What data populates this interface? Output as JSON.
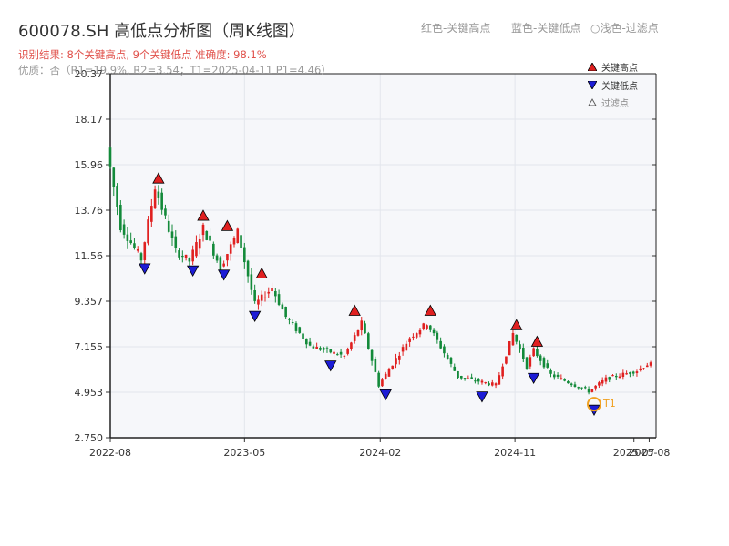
{
  "header": {
    "title": "600078.SH 高低点分析图（周K线图）",
    "hint_red": "红色-关键高点",
    "hint_blue": "蓝色-关键低点",
    "hint_light": "○浅色-过滤点",
    "result_line": "识别结果: 8个关键高点, 9个关键低点   准确度: 98.1%",
    "quality_line": "优质：否（R1=19.9%, R2=3.54；T1=2025-04-11 P1=4.46）"
  },
  "legend": {
    "high": "关键高点",
    "low": "关键低点",
    "filtered": "过滤点"
  },
  "colors": {
    "up": "#e02020",
    "down": "#138a3a",
    "high_marker": "#e02020",
    "low_marker": "#1c1cd6",
    "t1_ring": "#f0a020",
    "plot_bg": "#f6f7fa",
    "grid": "#e3e6ec"
  },
  "chart_data": {
    "type": "candlestick",
    "title": "600078.SH 高低点分析图（周K线图）",
    "ylim": [
      2.75,
      20.37
    ],
    "yticks": [
      "2.750",
      "4.953",
      "7.155",
      "9.357",
      "11.56",
      "13.76",
      "15.96",
      "18.17",
      "20.37"
    ],
    "xticks": [
      "2022-08",
      "2023-05",
      "2024-02",
      "2024-11",
      "2025-07",
      "2025-08"
    ],
    "xlim": [
      "2022-08-01",
      "2025-08-15"
    ],
    "price_path": [
      [
        "2022-08-01",
        16.8
      ],
      [
        "2022-08-29",
        13.0
      ],
      [
        "2022-10-10",
        11.4
      ],
      [
        "2022-11-07",
        14.9
      ],
      [
        "2022-12-19",
        11.8
      ],
      [
        "2023-01-16",
        11.3
      ],
      [
        "2023-02-13",
        12.9
      ],
      [
        "2023-03-20",
        11.0
      ],
      [
        "2023-04-24",
        12.7
      ],
      [
        "2023-05-29",
        9.2
      ],
      [
        "2023-07-03",
        10.0
      ],
      [
        "2023-07-31",
        8.6
      ],
      [
        "2023-09-18",
        7.2
      ],
      [
        "2023-11-27",
        6.7
      ],
      [
        "2024-01-01",
        8.3
      ],
      [
        "2024-02-05",
        5.3
      ],
      [
        "2024-04-08",
        7.6
      ],
      [
        "2024-05-13",
        8.3
      ],
      [
        "2024-07-15",
        5.7
      ],
      [
        "2024-09-30",
        5.3
      ],
      [
        "2024-11-04",
        7.8
      ],
      [
        "2024-12-02",
        6.2
      ],
      [
        "2024-12-16",
        7.0
      ],
      [
        "2025-01-20",
        5.8
      ],
      [
        "2025-04-07",
        5.0
      ],
      [
        "2025-05-12",
        5.6
      ],
      [
        "2025-07-14",
        6.0
      ],
      [
        "2025-08-04",
        6.3
      ]
    ],
    "key_highs": [
      {
        "date": "2022-11-07",
        "price": 14.9
      },
      {
        "date": "2023-02-06",
        "price": 13.1
      },
      {
        "date": "2023-03-27",
        "price": 12.6
      },
      {
        "date": "2023-06-05",
        "price": 10.3
      },
      {
        "date": "2023-12-11",
        "price": 8.5
      },
      {
        "date": "2024-05-13",
        "price": 8.5
      },
      {
        "date": "2024-11-04",
        "price": 7.8
      },
      {
        "date": "2024-12-16",
        "price": 7.0
      }
    ],
    "key_lows": [
      {
        "date": "2022-10-10",
        "price": 11.3
      },
      {
        "date": "2023-01-16",
        "price": 11.2
      },
      {
        "date": "2023-03-20",
        "price": 11.0
      },
      {
        "date": "2023-05-22",
        "price": 9.0
      },
      {
        "date": "2023-10-23",
        "price": 6.6
      },
      {
        "date": "2024-02-12",
        "price": 5.2
      },
      {
        "date": "2024-08-26",
        "price": 5.1
      },
      {
        "date": "2024-12-09",
        "price": 6.0
      },
      {
        "date": "2025-04-11",
        "price": 4.46
      }
    ],
    "t1": {
      "label": "T1",
      "date": "2025-04-11",
      "price": 4.46
    }
  }
}
